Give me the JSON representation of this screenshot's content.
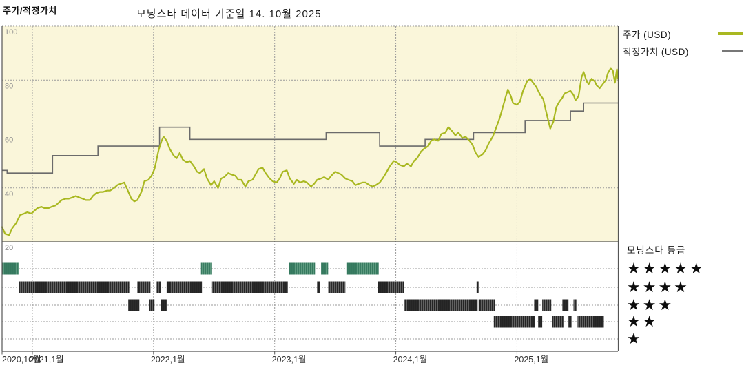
{
  "header": {
    "left_title": "주가/적정가치",
    "center_title": "모닝스타 데이터 기준일 14. 10월 2025"
  },
  "legend": {
    "price_label": "주가 (USD)",
    "fair_label": "적정가치 (USD)"
  },
  "rating_panel": {
    "title": "모닝스타 등급",
    "levels": [
      {
        "stars": 5,
        "display": "★★★★★"
      },
      {
        "stars": 4,
        "display": "★★★★"
      },
      {
        "stars": 3,
        "display": "★★★"
      },
      {
        "stars": 2,
        "display": "★★"
      },
      {
        "stars": 1,
        "display": "★"
      }
    ]
  },
  "colors": {
    "plot_bg": "#faf6da",
    "price": "#a9b821",
    "fair_value": "#6b6b6b",
    "rating_5star_base": "#35795e",
    "rating_5star_stripe": "#5d9a7f",
    "rating_other_base": "#242424",
    "rating_other_stripe": "#616161",
    "grid": "#9a9a9a",
    "frame": "#555555",
    "y_label_text": "#8f8f8f",
    "x_label_text": "#333333"
  },
  "chart_data": {
    "type": "line",
    "title": "모닝스타 데이터 기준일 14. 10월 2025",
    "x_axis": {
      "unit": "months since 2020-10",
      "range": [
        0,
        61
      ],
      "ticks": [
        {
          "m": 0,
          "label": "2020,10월"
        },
        {
          "m": 3,
          "label": "2021,1월"
        },
        {
          "m": 15,
          "label": "2022,1월"
        },
        {
          "m": 27,
          "label": "2023,1월"
        },
        {
          "m": 39,
          "label": "2024,1월"
        },
        {
          "m": 51,
          "label": "2025,1월"
        }
      ]
    },
    "y_axis": {
      "range": [
        20,
        100
      ],
      "ticks": [
        100,
        80,
        60,
        40,
        20
      ],
      "grid": true
    },
    "series": [
      {
        "name": "주가 (USD)",
        "type": "line",
        "points": [
          [
            0,
            25.5
          ],
          [
            0.3,
            23
          ],
          [
            0.7,
            22.5
          ],
          [
            1,
            25
          ],
          [
            1.4,
            27
          ],
          [
            1.8,
            30
          ],
          [
            2.2,
            30.5
          ],
          [
            2.5,
            31
          ],
          [
            2.9,
            30.5
          ],
          [
            3.2,
            31.5
          ],
          [
            3.5,
            32.5
          ],
          [
            3.9,
            33
          ],
          [
            4.2,
            32.5
          ],
          [
            4.6,
            32.5
          ],
          [
            4.9,
            33
          ],
          [
            5.3,
            33.5
          ],
          [
            5.6,
            34.5
          ],
          [
            5.9,
            35.5
          ],
          [
            6.3,
            36
          ],
          [
            6.6,
            36
          ],
          [
            7,
            36.5
          ],
          [
            7.3,
            37
          ],
          [
            7.6,
            36.5
          ],
          [
            8,
            36
          ],
          [
            8.3,
            35.5
          ],
          [
            8.7,
            35.5
          ],
          [
            9,
            37
          ],
          [
            9.3,
            38
          ],
          [
            9.7,
            38.5
          ],
          [
            10,
            38.5
          ],
          [
            10.4,
            39
          ],
          [
            10.7,
            39
          ],
          [
            11.1,
            40
          ],
          [
            11.4,
            41
          ],
          [
            11.7,
            41.5
          ],
          [
            12.1,
            42
          ],
          [
            12.4,
            39.5
          ],
          [
            12.8,
            36
          ],
          [
            13.1,
            35
          ],
          [
            13.4,
            35.5
          ],
          [
            13.8,
            38.5
          ],
          [
            14.1,
            42.5
          ],
          [
            14.5,
            43
          ],
          [
            14.8,
            44.5
          ],
          [
            15.1,
            47
          ],
          [
            15.5,
            54
          ],
          [
            15.8,
            57.5
          ],
          [
            16,
            59
          ],
          [
            16.3,
            57.5
          ],
          [
            16.6,
            54.5
          ],
          [
            17,
            52
          ],
          [
            17.3,
            51
          ],
          [
            17.6,
            53
          ],
          [
            17.9,
            50.5
          ],
          [
            18.3,
            49.5
          ],
          [
            18.6,
            50
          ],
          [
            19,
            48
          ],
          [
            19.3,
            46
          ],
          [
            19.6,
            45.5
          ],
          [
            20,
            47
          ],
          [
            20.3,
            43.5
          ],
          [
            20.7,
            41
          ],
          [
            21,
            42.5
          ],
          [
            21.4,
            40
          ],
          [
            21.7,
            43.5
          ],
          [
            22,
            44
          ],
          [
            22.4,
            45.5
          ],
          [
            22.7,
            45
          ],
          [
            23.1,
            44.5
          ],
          [
            23.4,
            43
          ],
          [
            23.7,
            43
          ],
          [
            24.1,
            40.5
          ],
          [
            24.4,
            42.5
          ],
          [
            24.8,
            43
          ],
          [
            25.1,
            45
          ],
          [
            25.4,
            47
          ],
          [
            25.8,
            47.5
          ],
          [
            26.1,
            45.5
          ],
          [
            26.5,
            43.5
          ],
          [
            26.8,
            42.5
          ],
          [
            27.2,
            42
          ],
          [
            27.5,
            43.5
          ],
          [
            27.8,
            46
          ],
          [
            28.2,
            46.5
          ],
          [
            28.5,
            43.5
          ],
          [
            28.9,
            41.5
          ],
          [
            29.2,
            43
          ],
          [
            29.5,
            42
          ],
          [
            29.9,
            42.5
          ],
          [
            30.2,
            42
          ],
          [
            30.6,
            40.5
          ],
          [
            30.9,
            41.5
          ],
          [
            31.2,
            43
          ],
          [
            31.6,
            43.5
          ],
          [
            31.9,
            44
          ],
          [
            32.3,
            43
          ],
          [
            32.6,
            44.5
          ],
          [
            33,
            46
          ],
          [
            33.3,
            45.5
          ],
          [
            33.6,
            45
          ],
          [
            34,
            43.5
          ],
          [
            34.3,
            43
          ],
          [
            34.7,
            42.5
          ],
          [
            35,
            41
          ],
          [
            35.3,
            41.5
          ],
          [
            35.7,
            42
          ],
          [
            36,
            42
          ],
          [
            36.4,
            41
          ],
          [
            36.7,
            40.5
          ],
          [
            37,
            41
          ],
          [
            37.4,
            42
          ],
          [
            37.7,
            43.5
          ],
          [
            38.1,
            46
          ],
          [
            38.4,
            48
          ],
          [
            38.8,
            50
          ],
          [
            39.1,
            49.5
          ],
          [
            39.4,
            48.5
          ],
          [
            39.8,
            48
          ],
          [
            40.1,
            49
          ],
          [
            40.5,
            48
          ],
          [
            40.8,
            50
          ],
          [
            41.1,
            51
          ],
          [
            41.5,
            53.5
          ],
          [
            41.8,
            54.5
          ],
          [
            42.2,
            55.5
          ],
          [
            42.5,
            57.5
          ],
          [
            42.8,
            58
          ],
          [
            43.2,
            57.5
          ],
          [
            43.5,
            60
          ],
          [
            43.9,
            60.5
          ],
          [
            44.2,
            62.5
          ],
          [
            44.6,
            61
          ],
          [
            44.9,
            59.5
          ],
          [
            45.2,
            60.5
          ],
          [
            45.6,
            58.5
          ],
          [
            45.9,
            59
          ],
          [
            46.3,
            57.5
          ],
          [
            46.6,
            56
          ],
          [
            46.9,
            53
          ],
          [
            47.2,
            51.5
          ],
          [
            47.6,
            52.5
          ],
          [
            47.9,
            54
          ],
          [
            48.2,
            56.5
          ],
          [
            48.6,
            59
          ],
          [
            48.9,
            62
          ],
          [
            49.3,
            66
          ],
          [
            49.6,
            70
          ],
          [
            49.9,
            74
          ],
          [
            50.1,
            76.5
          ],
          [
            50.4,
            74
          ],
          [
            50.6,
            71.5
          ],
          [
            51,
            70.8
          ],
          [
            51.3,
            72
          ],
          [
            51.6,
            76
          ],
          [
            52,
            79.5
          ],
          [
            52.3,
            80.5
          ],
          [
            52.6,
            79
          ],
          [
            52.9,
            77.5
          ],
          [
            53.3,
            74.5
          ],
          [
            53.6,
            73
          ],
          [
            54,
            66.5
          ],
          [
            54.3,
            62
          ],
          [
            54.6,
            64.5
          ],
          [
            54.9,
            70
          ],
          [
            55.2,
            72
          ],
          [
            55.5,
            73.5
          ],
          [
            55.7,
            75
          ],
          [
            56,
            75.5
          ],
          [
            56.3,
            76
          ],
          [
            56.6,
            74.5
          ],
          [
            56.8,
            72.5
          ],
          [
            57.1,
            74
          ],
          [
            57.4,
            81
          ],
          [
            57.6,
            83
          ],
          [
            57.9,
            79.5
          ],
          [
            58.1,
            78.5
          ],
          [
            58.4,
            80.5
          ],
          [
            58.7,
            79.5
          ],
          [
            58.9,
            78
          ],
          [
            59.2,
            77
          ],
          [
            59.5,
            78.5
          ],
          [
            59.8,
            80
          ],
          [
            60,
            82.5
          ],
          [
            60.3,
            84.5
          ],
          [
            60.5,
            83.5
          ],
          [
            60.7,
            79
          ],
          [
            60.9,
            84
          ],
          [
            61,
            80.5
          ]
        ]
      },
      {
        "name": "적정가치 (USD)",
        "type": "step",
        "steps": [
          [
            0,
            0.5,
            46.5
          ],
          [
            0.5,
            5.0,
            45.5
          ],
          [
            5.0,
            9.5,
            52
          ],
          [
            9.5,
            15.6,
            55.5
          ],
          [
            15.6,
            18.6,
            62.5
          ],
          [
            18.6,
            32.1,
            58
          ],
          [
            32.1,
            37.4,
            60.5
          ],
          [
            37.4,
            41.9,
            55.5
          ],
          [
            41.9,
            46.7,
            58
          ],
          [
            46.7,
            51.8,
            60.5
          ],
          [
            51.8,
            56.3,
            65
          ],
          [
            56.3,
            57.6,
            68.5
          ],
          [
            57.6,
            61,
            71.5
          ]
        ]
      }
    ],
    "rating_timeline": {
      "title": "모닝스타 등급",
      "unit": "months since 2020-10",
      "segments_by_stars": {
        "5": [
          [
            0,
            1.7
          ],
          [
            19.7,
            20.8
          ],
          [
            28.4,
            31.0
          ],
          [
            31.6,
            32.3
          ],
          [
            34.1,
            37.3
          ]
        ],
        "4": [
          [
            1.7,
            12.6
          ],
          [
            13.4,
            14.7
          ],
          [
            15.3,
            15.7
          ],
          [
            16.3,
            19.8
          ],
          [
            20.8,
            28.3
          ],
          [
            31.2,
            31.5
          ],
          [
            32.3,
            34.0
          ],
          [
            37.2,
            39.8
          ],
          [
            47.0,
            47.2
          ]
        ],
        "3": [
          [
            12.5,
            13.6
          ],
          [
            14.6,
            15.1
          ],
          [
            15.7,
            16.3
          ],
          [
            39.8,
            47.1
          ],
          [
            47.2,
            48.8
          ],
          [
            52.7,
            53.1
          ],
          [
            53.5,
            54.4
          ],
          [
            55.5,
            56.1
          ],
          [
            56.6,
            56.9
          ]
        ],
        "2": [
          [
            48.7,
            52.8
          ],
          [
            53.1,
            53.5
          ],
          [
            54.5,
            55.6
          ],
          [
            56.1,
            56.4
          ],
          [
            57.0,
            59.6
          ]
        ],
        "1": []
      }
    }
  }
}
